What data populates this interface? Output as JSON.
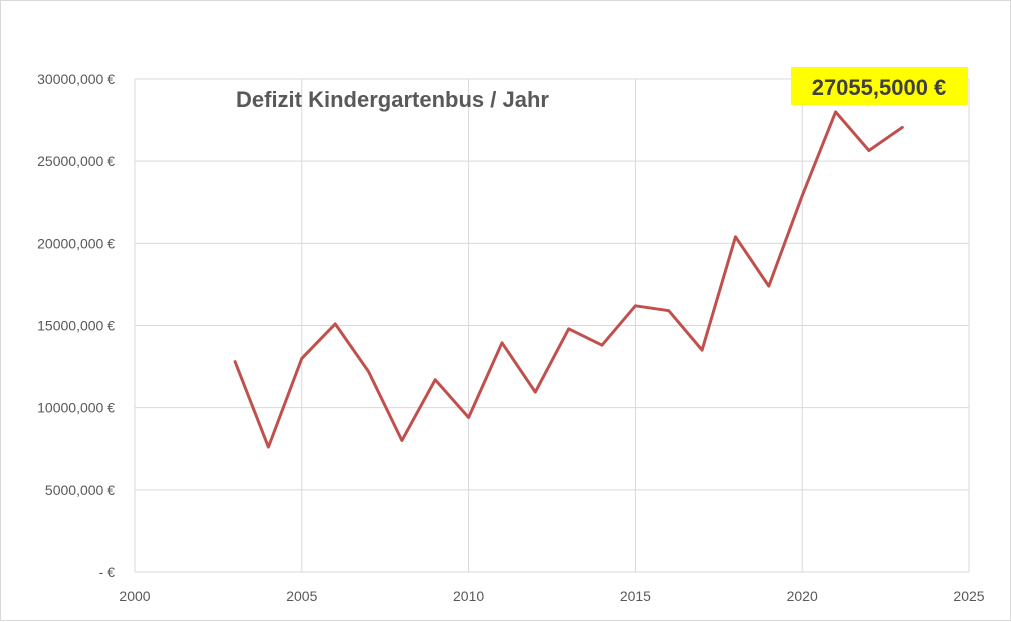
{
  "chart_data": {
    "type": "line",
    "title": "Defizit Kindergartenbus / Jahr",
    "xlabel": "",
    "ylabel": "",
    "xlim": [
      2000,
      2025
    ],
    "ylim": [
      0,
      30000
    ],
    "x_ticks": [
      2000,
      2005,
      2010,
      2015,
      2020,
      2025
    ],
    "y_ticks": [
      0,
      5000,
      10000,
      15000,
      20000,
      25000,
      30000
    ],
    "y_tick_labels": [
      "-  €",
      "5000,000 €",
      "10000,000 €",
      "15000,000 €",
      "20000,000 €",
      "25000,000 €",
      "30000,000 €"
    ],
    "grid": true,
    "series": [
      {
        "color": "#c0504d",
        "x": [
          2003,
          2004,
          2005,
          2006,
          2007,
          2008,
          2009,
          2010,
          2011,
          2012,
          2013,
          2014,
          2015,
          2016,
          2017,
          2018,
          2019,
          2020,
          2021,
          2022,
          2023
        ],
        "values": [
          12800,
          7600,
          13000,
          15100,
          12200,
          8000,
          11700,
          9400,
          13950,
          10950,
          14800,
          13800,
          16200,
          15900,
          13500,
          20400,
          17400,
          22900,
          28000,
          25650,
          27055.5
        ]
      }
    ],
    "annotations": [
      {
        "text": "27055,5000 €",
        "x": 2023,
        "y": 27055.5,
        "background": "#ffff00"
      }
    ]
  }
}
